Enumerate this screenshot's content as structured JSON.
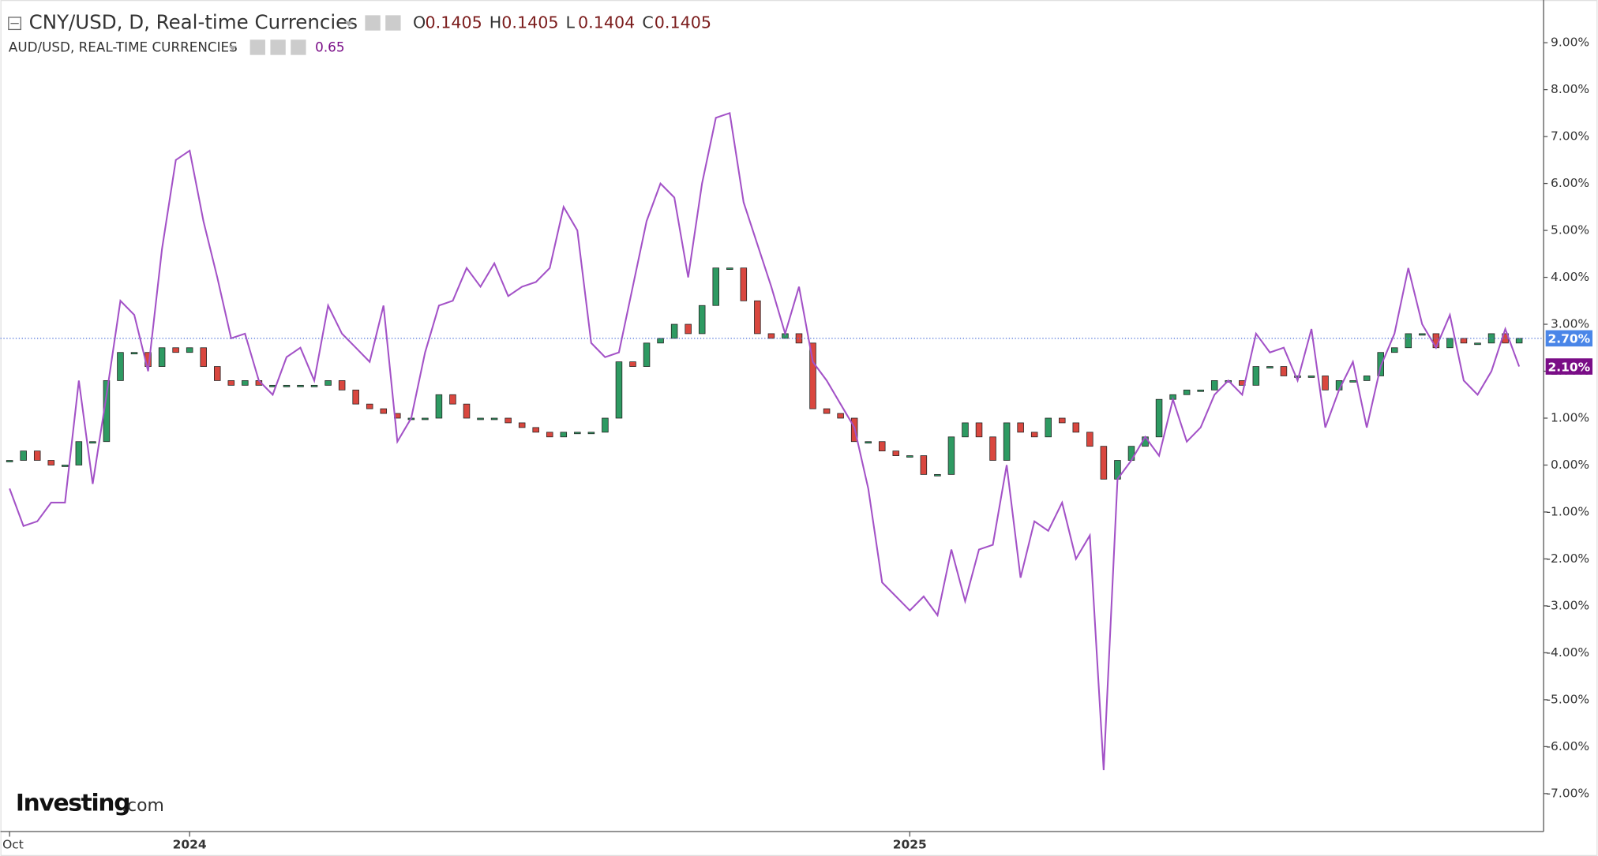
{
  "chart_data": {
    "type": "combo",
    "title": "CNY/USD, D, Real-time Currencies",
    "ohlc": [
      {
        "label": "O",
        "value": 0.1405
      },
      {
        "label": "H",
        "value": 0.1405
      },
      {
        "label": "L",
        "value": 0.1404
      },
      {
        "label": "C",
        "value": 0.1405
      }
    ],
    "watermark": {
      "brand": "Investing",
      "suffix": ".com"
    },
    "categories": [
      "Oct",
      null,
      null,
      null,
      null,
      null,
      null,
      null,
      null,
      null,
      null,
      null,
      null,
      "2024",
      null,
      null,
      null,
      null,
      null,
      null,
      null,
      null,
      null,
      null,
      null,
      null,
      null,
      null,
      null,
      null,
      null,
      null,
      null,
      null,
      null,
      null,
      null,
      null,
      null,
      null,
      null,
      null,
      null,
      null,
      null,
      null,
      null,
      null,
      null,
      null,
      null,
      null,
      null,
      null,
      null,
      null,
      null,
      null,
      null,
      null,
      null,
      null,
      null,
      null,
      null,
      "2025",
      null,
      null,
      null,
      null,
      null,
      null,
      null,
      null,
      null,
      null,
      null,
      null,
      null,
      null,
      null,
      null,
      null,
      null,
      null,
      null,
      null,
      null,
      null,
      null,
      null,
      null,
      null,
      null,
      null,
      null,
      null,
      null,
      null,
      null,
      null,
      null,
      null,
      null,
      null,
      null,
      null,
      null,
      null,
      null
    ],
    "ylim": [
      -7.81,
      9.91
    ],
    "yticks": [
      {
        "value": -7,
        "label": "-7.00%"
      },
      {
        "value": -6,
        "label": "-6.00%"
      },
      {
        "value": -5,
        "label": "-5.00%"
      },
      {
        "value": -4,
        "label": "-4.00%"
      },
      {
        "value": -3,
        "label": "-3.00%"
      },
      {
        "value": -2,
        "label": "-2.00%"
      },
      {
        "value": -1,
        "label": "-1.00%"
      },
      {
        "value": 0,
        "label": "0.00%"
      },
      {
        "value": 1,
        "label": "1.00%"
      },
      {
        "value": 2,
        "label": "2.00%"
      },
      {
        "value": 3,
        "label": "3.00%"
      },
      {
        "value": 4,
        "label": "4.00%"
      },
      {
        "value": 5,
        "label": "5.00%"
      },
      {
        "value": 6,
        "label": "6.00%"
      },
      {
        "value": 7,
        "label": "7.00%"
      },
      {
        "value": 8,
        "label": "8.00%"
      },
      {
        "value": 9,
        "label": "9.00%"
      }
    ],
    "price_line": true,
    "series": [
      {
        "type": "candlestick",
        "up_color": "#2e9a62",
        "down_color": "#d9473f",
        "label_color": "#4a86e8",
        "last_label": "2.70%",
        "values": [
          0.1,
          0.3,
          0.1,
          0.0,
          0.0,
          0.5,
          0.5,
          1.8,
          2.4,
          2.4,
          2.1,
          2.5,
          2.4,
          2.5,
          2.1,
          1.8,
          1.7,
          1.8,
          1.7,
          1.7,
          1.7,
          1.7,
          1.7,
          1.8,
          1.6,
          1.3,
          1.2,
          1.1,
          1.0,
          1.0,
          1.0,
          1.5,
          1.3,
          1.0,
          1.0,
          1.0,
          0.9,
          0.8,
          0.7,
          0.6,
          0.7,
          0.7,
          0.7,
          1.0,
          2.2,
          2.1,
          2.6,
          2.7,
          3.0,
          2.8,
          3.4,
          4.2,
          4.2,
          3.5,
          2.8,
          2.7,
          2.8,
          2.6,
          1.2,
          1.1,
          1.0,
          0.5,
          0.5,
          0.3,
          0.2,
          0.2,
          -0.2,
          -0.2,
          0.6,
          0.9,
          0.6,
          0.1,
          0.9,
          0.7,
          0.6,
          1.0,
          0.9,
          0.7,
          0.4,
          -0.3,
          0.1,
          0.4,
          0.6,
          1.4,
          1.5,
          1.6,
          1.6,
          1.8,
          1.8,
          1.7,
          2.1,
          2.1,
          1.9,
          1.9,
          1.9,
          1.6,
          1.8,
          1.8,
          1.9,
          2.4,
          2.5,
          2.8,
          2.8,
          2.5,
          2.7,
          2.6,
          2.6,
          2.8,
          2.6,
          2.7
        ]
      },
      {
        "type": "line",
        "name": "AUD/USD, REAL-TIME CURRENCIES",
        "legend_value": 0.65,
        "color": "#a352c7",
        "label_color": "#7a0d87",
        "last_label": "2.10%",
        "values": [
          -0.5,
          -1.3,
          -1.2,
          -0.8,
          -0.8,
          1.8,
          -0.4,
          1.5,
          3.5,
          3.2,
          2.0,
          4.6,
          6.5,
          6.7,
          5.2,
          4.0,
          2.7,
          2.8,
          1.8,
          1.5,
          2.3,
          2.5,
          1.8,
          3.4,
          2.8,
          2.5,
          2.2,
          3.4,
          0.5,
          1.0,
          2.4,
          3.4,
          3.5,
          4.2,
          3.8,
          4.3,
          3.6,
          3.8,
          3.9,
          4.2,
          5.5,
          5.0,
          2.6,
          2.3,
          2.4,
          3.8,
          5.2,
          6.0,
          5.7,
          4.0,
          6.0,
          7.4,
          7.5,
          5.6,
          4.7,
          3.8,
          2.8,
          3.8,
          2.2,
          1.8,
          1.3,
          0.8,
          -0.5,
          -2.5,
          -2.8,
          -3.1,
          -2.8,
          -3.2,
          -1.8,
          -2.9,
          -1.8,
          -1.7,
          0.0,
          -2.4,
          -1.2,
          -1.4,
          -0.8,
          -2.0,
          -1.5,
          -6.5,
          -0.3,
          0.1,
          0.6,
          0.2,
          1.4,
          0.5,
          0.8,
          1.5,
          1.8,
          1.5,
          2.8,
          2.4,
          2.5,
          1.8,
          2.9,
          0.8,
          1.6,
          2.2,
          0.8,
          2.1,
          2.8,
          4.2,
          3.0,
          2.5,
          3.2,
          1.8,
          1.5,
          2.0,
          2.9,
          2.1
        ]
      }
    ]
  }
}
